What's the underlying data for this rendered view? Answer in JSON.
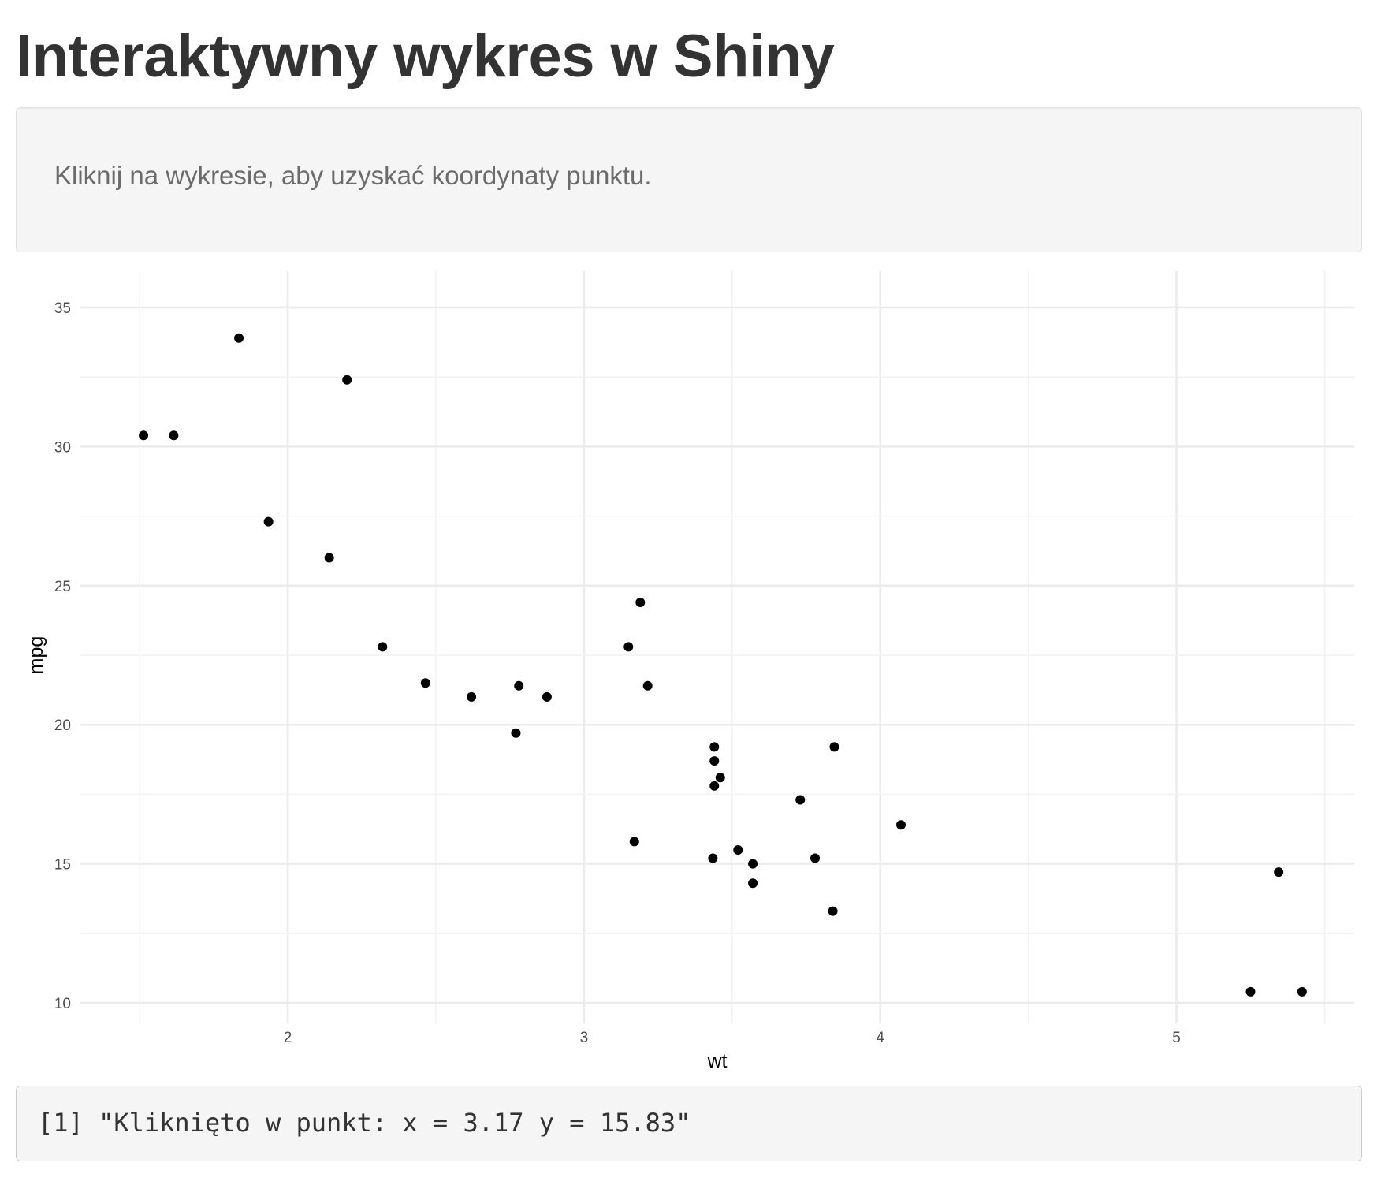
{
  "page": {
    "title": "Interaktywny wykres w Shiny"
  },
  "sidebar": {
    "instruction": "Kliknij na wykresie, aby uzyskać koordynaty punktu."
  },
  "output": {
    "text": "[1] \"Kliknięto w punkt: x = 3.17 y = 15.83\""
  },
  "chart_data": {
    "type": "scatter",
    "title": "",
    "xlabel": "wt",
    "ylabel": "mpg",
    "xlim": [
      1.3,
      5.6
    ],
    "ylim": [
      9.2,
      35.0
    ],
    "x_ticks": [
      2,
      3,
      4,
      5
    ],
    "y_ticks": [
      10,
      15,
      20,
      25,
      30,
      35
    ],
    "grid": true,
    "point_color": "#000000",
    "grid_color": "#ebebeb",
    "points": [
      {
        "x": 2.62,
        "y": 21.0
      },
      {
        "x": 2.875,
        "y": 21.0
      },
      {
        "x": 2.32,
        "y": 22.8
      },
      {
        "x": 3.215,
        "y": 21.4
      },
      {
        "x": 3.44,
        "y": 18.7
      },
      {
        "x": 3.46,
        "y": 18.1
      },
      {
        "x": 3.57,
        "y": 14.3
      },
      {
        "x": 3.19,
        "y": 24.4
      },
      {
        "x": 3.15,
        "y": 22.8
      },
      {
        "x": 3.44,
        "y": 19.2
      },
      {
        "x": 3.44,
        "y": 17.8
      },
      {
        "x": 4.07,
        "y": 16.4
      },
      {
        "x": 3.73,
        "y": 17.3
      },
      {
        "x": 3.78,
        "y": 15.2
      },
      {
        "x": 5.25,
        "y": 10.4
      },
      {
        "x": 5.424,
        "y": 10.4
      },
      {
        "x": 5.345,
        "y": 14.7
      },
      {
        "x": 2.2,
        "y": 32.4
      },
      {
        "x": 1.615,
        "y": 30.4
      },
      {
        "x": 1.835,
        "y": 33.9
      },
      {
        "x": 2.465,
        "y": 21.5
      },
      {
        "x": 3.52,
        "y": 15.5
      },
      {
        "x": 3.435,
        "y": 15.2
      },
      {
        "x": 3.84,
        "y": 13.3
      },
      {
        "x": 3.845,
        "y": 19.2
      },
      {
        "x": 1.935,
        "y": 27.3
      },
      {
        "x": 2.14,
        "y": 26.0
      },
      {
        "x": 1.513,
        "y": 30.4
      },
      {
        "x": 3.17,
        "y": 15.8
      },
      {
        "x": 2.77,
        "y": 19.7
      },
      {
        "x": 3.57,
        "y": 15.0
      },
      {
        "x": 2.78,
        "y": 21.4
      }
    ]
  }
}
